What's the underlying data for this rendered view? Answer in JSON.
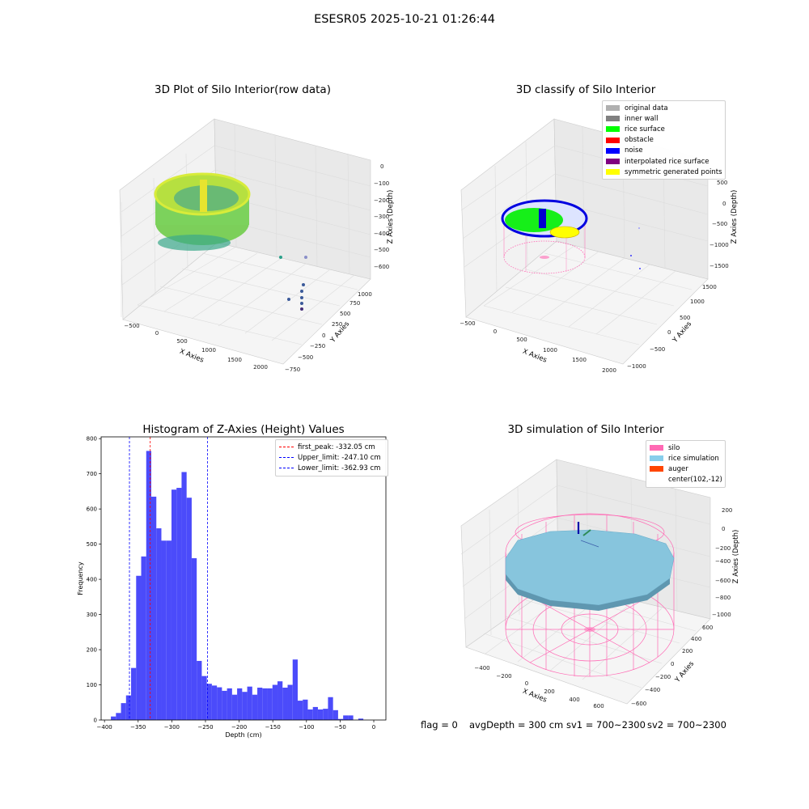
{
  "figure": {
    "title": "ESESR05 2025-10-21 01:26:44"
  },
  "panels": {
    "raw": {
      "title": "3D Plot of Silo Interior(row data)",
      "xlabel": "X Axies",
      "ylabel": "Y Axies",
      "zlabel": "Z Axies (Depth)",
      "xticks": [
        "−500",
        "0",
        "500",
        "1000",
        "1500",
        "2000"
      ],
      "yticks": [
        "−750",
        "−500",
        "−250",
        "0",
        "250",
        "500",
        "750",
        "1000"
      ],
      "zticks": [
        "0",
        "−100",
        "−200",
        "−300",
        "−400",
        "−500",
        "−600"
      ]
    },
    "classify": {
      "title": "3D classify of Silo Interior",
      "xlabel": "X Axies",
      "ylabel": "Y Axies",
      "zlabel": "Z Axies (Depth)",
      "xticks": [
        "−500",
        "0",
        "500",
        "1000",
        "1500",
        "2000"
      ],
      "yticks": [
        "−1000",
        "−500",
        "0",
        "500",
        "1000",
        "1500"
      ],
      "zticks": [
        "500",
        "0",
        "−500",
        "−1000",
        "−1500"
      ],
      "legend": [
        {
          "label": "original data",
          "color": "#b0b0b0"
        },
        {
          "label": "inner wall",
          "color": "#808080"
        },
        {
          "label": "rice surface",
          "color": "#00ff00"
        },
        {
          "label": "obstacle",
          "color": "#ff0000"
        },
        {
          "label": "noise",
          "color": "#0000ff"
        },
        {
          "label": "interpolated rice surface",
          "color": "#800080"
        },
        {
          "label": "symmetric generated points",
          "color": "#ffff00"
        }
      ]
    },
    "simulation": {
      "title": "3D simulation of Silo Interior",
      "xlabel": "X Axies",
      "ylabel": "Y Axies",
      "zlabel": "Z Axies (Depth)",
      "xticks": [
        "−400",
        "−200",
        "0",
        "200",
        "400",
        "600"
      ],
      "yticks": [
        "−600",
        "−400",
        "−200",
        "0",
        "200",
        "400",
        "600"
      ],
      "zticks": [
        "200",
        "0",
        "−200",
        "−400",
        "−600",
        "−800",
        "−1000"
      ],
      "legend": [
        {
          "label": "silo",
          "color": "#ff69b4"
        },
        {
          "label": "rice simulation",
          "color": "#87ceeb"
        },
        {
          "label": "auger",
          "color": "#ff4500"
        },
        {
          "label": "center(102,-12)",
          "color": ""
        }
      ]
    }
  },
  "status": {
    "flag": "flag = 0",
    "avg_depth": "avgDepth = 300 cm",
    "sv1": "sv1 = 700~2300",
    "sv2": "sv2 = 700~2300"
  },
  "chart_data": {
    "type": "bar",
    "title": "Histogram of Z-Axies (Height) Values",
    "xlabel": "Depth (cm)",
    "ylabel": "Frequency",
    "xlim": [
      -405,
      18
    ],
    "ylim": [
      0,
      805
    ],
    "bin_width": 7.5,
    "bin_start": -398,
    "values": [
      0,
      10,
      20,
      48,
      70,
      148,
      410,
      465,
      765,
      635,
      545,
      510,
      510,
      655,
      660,
      705,
      632,
      460,
      168,
      125,
      103,
      98,
      93,
      83,
      90,
      72,
      90,
      80,
      95,
      72,
      92,
      90,
      90,
      100,
      110,
      92,
      100,
      172,
      55,
      58,
      30,
      37,
      30,
      32,
      65,
      28,
      3,
      13,
      13,
      0,
      4,
      0
    ],
    "xticks": [
      {
        "value": -400,
        "label": "−400"
      },
      {
        "value": -350,
        "label": "−350"
      },
      {
        "value": -300,
        "label": "−300"
      },
      {
        "value": -250,
        "label": "−250"
      },
      {
        "value": -200,
        "label": "−200"
      },
      {
        "value": -150,
        "label": "−150"
      },
      {
        "value": -100,
        "label": "−100"
      },
      {
        "value": -50,
        "label": "−50"
      },
      {
        "value": 0,
        "label": "0"
      }
    ],
    "yticks": [
      0,
      100,
      200,
      300,
      400,
      500,
      600,
      700,
      800
    ],
    "bar_color": "#4b4bfa",
    "reference_lines": [
      {
        "name": "first_peak: -332.05 cm",
        "value": -332.05,
        "color": "#ff0000"
      },
      {
        "name": "Upper_limit: -247.10 cm",
        "value": -247.1,
        "color": "#0000ff"
      },
      {
        "name": "Lower_limit: -362.93 cm",
        "value": -362.93,
        "color": "#0000ff"
      }
    ],
    "legend_position": "upper-right"
  }
}
